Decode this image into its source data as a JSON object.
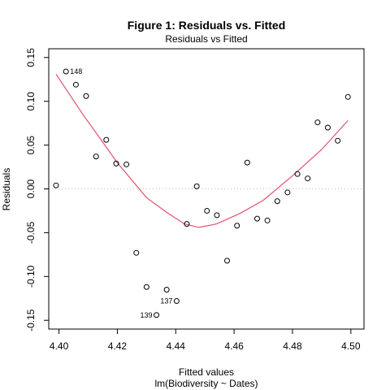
{
  "figure": {
    "title": "Figure 1: Residuals vs. Fitted",
    "subtitle": "Residuals vs Fitted",
    "caption": "lm(Biodiversity ~ Dates)"
  },
  "chart_data": {
    "type": "scatter",
    "title": "Figure 1: Residuals vs. Fitted",
    "subtitle": "Residuals vs Fitted",
    "xlabel": "Fitted values",
    "ylabel": "Residuals",
    "xlim": [
      4.3965,
      4.5045
    ],
    "ylim": [
      -0.16,
      0.16
    ],
    "xticks": [
      4.4,
      4.42,
      4.44,
      4.46,
      4.48,
      4.5
    ],
    "xtick_labels": [
      "4.40",
      "4.42",
      "4.44",
      "4.46",
      "4.48",
      "4.50"
    ],
    "yticks": [
      -0.15,
      -0.1,
      -0.05,
      0.0,
      0.05,
      0.1,
      0.15
    ],
    "ytick_labels": [
      "-0.15",
      "-0.10",
      "-0.05",
      "0.00",
      "0.05",
      "0.10",
      "0.15"
    ],
    "zero_line": true,
    "points": [
      {
        "x": 4.399,
        "y": 0.004
      },
      {
        "x": 4.4024,
        "y": 0.134,
        "label": "148"
      },
      {
        "x": 4.4058,
        "y": 0.119
      },
      {
        "x": 4.4093,
        "y": 0.106
      },
      {
        "x": 4.4127,
        "y": 0.037
      },
      {
        "x": 4.4162,
        "y": 0.056
      },
      {
        "x": 4.4196,
        "y": 0.029
      },
      {
        "x": 4.4231,
        "y": 0.028
      },
      {
        "x": 4.4265,
        "y": -0.073
      },
      {
        "x": 4.43,
        "y": -0.112
      },
      {
        "x": 4.4334,
        "y": -0.144,
        "label": "139"
      },
      {
        "x": 4.4369,
        "y": -0.115
      },
      {
        "x": 4.4403,
        "y": -0.128,
        "label": "137"
      },
      {
        "x": 4.4438,
        "y": -0.04
      },
      {
        "x": 4.4472,
        "y": 0.003
      },
      {
        "x": 4.4507,
        "y": -0.025
      },
      {
        "x": 4.4541,
        "y": -0.03
      },
      {
        "x": 4.4576,
        "y": -0.082
      },
      {
        "x": 4.461,
        "y": -0.042
      },
      {
        "x": 4.4645,
        "y": 0.03
      },
      {
        "x": 4.4679,
        "y": -0.034
      },
      {
        "x": 4.4714,
        "y": -0.036
      },
      {
        "x": 4.4748,
        "y": -0.014
      },
      {
        "x": 4.4783,
        "y": -0.004
      },
      {
        "x": 4.4817,
        "y": 0.017
      },
      {
        "x": 4.4852,
        "y": 0.012
      },
      {
        "x": 4.4886,
        "y": 0.076
      },
      {
        "x": 4.4921,
        "y": 0.07
      },
      {
        "x": 4.4955,
        "y": 0.055
      },
      {
        "x": 4.499,
        "y": 0.105
      }
    ],
    "smooth": {
      "x": [
        4.399,
        4.408,
        4.42,
        4.43,
        4.437,
        4.443,
        4.448,
        4.454,
        4.462,
        4.47,
        4.48,
        4.49,
        4.499
      ],
      "y": [
        0.131,
        0.086,
        0.03,
        -0.01,
        -0.027,
        -0.04,
        -0.044,
        -0.04,
        -0.028,
        -0.013,
        0.015,
        0.045,
        0.078
      ]
    },
    "colors": {
      "points": "#000000",
      "smooth": "#df536b",
      "zero_line": "#bbbbbb",
      "frame": "#000000"
    }
  }
}
